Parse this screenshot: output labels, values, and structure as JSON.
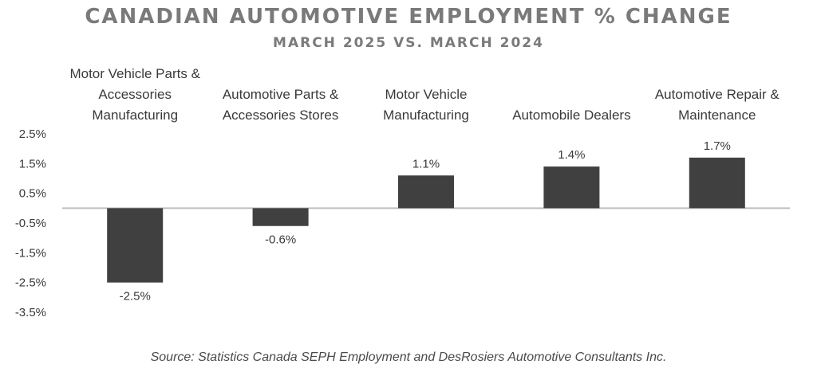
{
  "title": "CANADIAN AUTOMOTIVE EMPLOYMENT % CHANGE",
  "subtitle": "MARCH 2025 VS. MARCH 2024",
  "source": "Source: Statistics Canada SEPH Employment and DesRosiers Automotive Consultants Inc.",
  "chart_data": {
    "type": "bar",
    "title": "CANADIAN AUTOMOTIVE EMPLOYMENT % CHANGE",
    "subtitle": "MARCH 2025 VS. MARCH 2024",
    "categories": [
      [
        "Motor Vehicle Parts &",
        "Accessories",
        "Manufacturing"
      ],
      [
        "Automotive Parts &",
        "Accessories Stores"
      ],
      [
        "Motor Vehicle",
        "Manufacturing"
      ],
      [
        "Automobile Dealers"
      ],
      [
        "Automotive Repair &",
        "Maintenance"
      ]
    ],
    "values": [
      -2.5,
      -0.6,
      1.1,
      1.4,
      1.7
    ],
    "data_labels": [
      "-2.5%",
      "-0.6%",
      "1.1%",
      "1.4%",
      "1.7%"
    ],
    "y_ticks": [
      2.5,
      1.5,
      0.5,
      -0.5,
      -1.5,
      -2.5,
      -3.5
    ],
    "y_tick_labels": [
      "2.5%",
      "1.5%",
      "0.5%",
      "-0.5%",
      "-1.5%",
      "-2.5%",
      "-3.5%"
    ],
    "ylim": [
      -3.5,
      2.5
    ],
    "xlabel": "",
    "ylabel": "",
    "grid": false,
    "bar_color": "#404040",
    "axis_color": "#bfbfbf"
  }
}
